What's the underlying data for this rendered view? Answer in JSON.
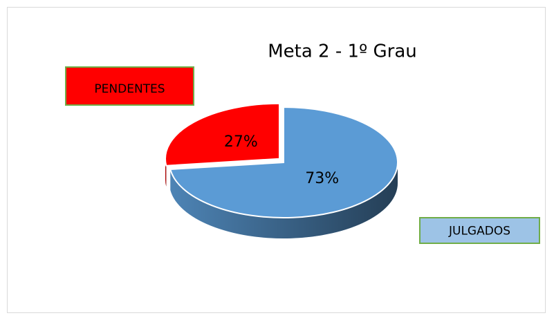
{
  "chart_data": {
    "type": "pie3d",
    "title": "Meta 2 - 1º Grau",
    "categories": [
      "JULGADOS",
      "PENDENTES"
    ],
    "values": [
      73,
      27
    ],
    "value_labels": [
      "73%",
      "27%"
    ],
    "colors": [
      "#5b9bd5",
      "#ff0000"
    ],
    "label_fills": [
      "#9dc3e6",
      "#ff0000"
    ],
    "exploded": [
      false,
      true
    ]
  }
}
